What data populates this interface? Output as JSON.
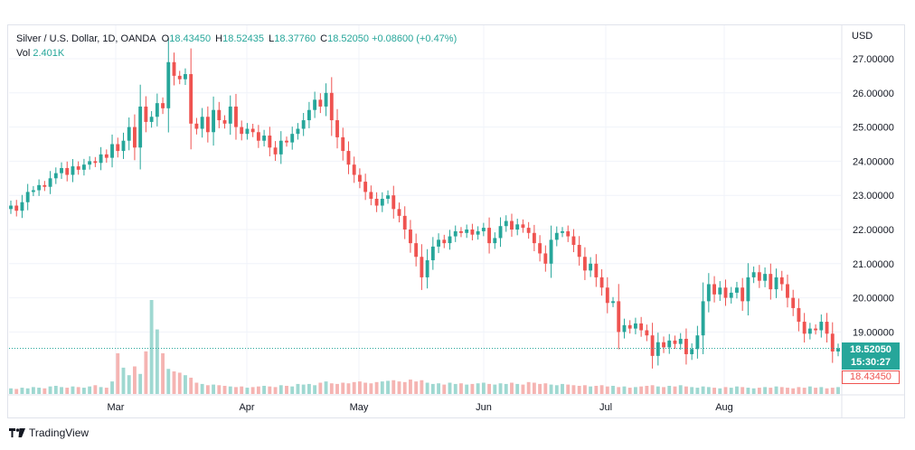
{
  "legend": {
    "symbol": "Silver / U.S. Dollar, 1D, OANDA",
    "open_label": "O",
    "open": "18.43450",
    "high_label": "H",
    "high": "18.52435",
    "low_label": "L",
    "low": "18.37760",
    "close_label": "C",
    "close": "18.52050",
    "change": "+0.08600 (+0.47%)",
    "vol_label": "Vol",
    "vol": "2.401K"
  },
  "currency": "USD",
  "price_badge": {
    "price": "18.52050",
    "countdown": "15:30:27"
  },
  "open_badge": "18.43450",
  "brand": "TradingView",
  "colors": {
    "up": "#26a69a",
    "down": "#ef5350",
    "up_vol": "#9fd8d1",
    "down_vol": "#f5b4b2",
    "grid": "#f0f3fa"
  },
  "chart_data": {
    "type": "candlestick",
    "ylim": [
      17.3,
      27.5
    ],
    "yticks": [
      "27.00000",
      "26.00000",
      "25.00000",
      "24.00000",
      "23.00000",
      "22.00000",
      "21.00000",
      "20.00000",
      "19.00000"
    ],
    "xticks": [
      "Mar",
      "Apr",
      "May",
      "Jun",
      "Jul",
      "Aug"
    ],
    "last_price": 18.5205,
    "close": [
      22.7,
      22.55,
      22.8,
      23.1,
      23.15,
      23.3,
      23.25,
      23.5,
      23.65,
      23.8,
      23.6,
      23.85,
      23.75,
      23.9,
      24.0,
      23.95,
      24.2,
      24.1,
      24.5,
      24.3,
      24.6,
      25.0,
      24.4,
      25.6,
      25.15,
      25.3,
      25.7,
      25.55,
      26.9,
      26.5,
      26.4,
      26.55,
      25.1,
      24.95,
      25.3,
      24.85,
      25.5,
      25.2,
      25.1,
      25.6,
      25.0,
      24.8,
      24.95,
      24.85,
      24.6,
      24.75,
      24.4,
      24.2,
      24.6,
      24.55,
      24.8,
      24.95,
      25.2,
      25.5,
      25.8,
      25.6,
      26.0,
      25.2,
      24.7,
      24.3,
      23.9,
      23.6,
      23.4,
      23.1,
      22.9,
      22.7,
      22.9,
      23.0,
      22.6,
      22.4,
      22.0,
      21.6,
      21.2,
      20.6,
      21.1,
      21.5,
      21.7,
      21.6,
      21.8,
      21.95,
      21.9,
      22.0,
      21.85,
      21.95,
      22.05,
      21.6,
      21.75,
      22.1,
      22.25,
      22.0,
      22.15,
      22.05,
      21.9,
      21.6,
      21.3,
      21.0,
      21.7,
      21.9,
      21.95,
      21.8,
      21.55,
      21.2,
      20.8,
      21.0,
      20.6,
      20.3,
      19.85,
      19.9,
      19.0,
      19.2,
      19.1,
      19.25,
      19.05,
      18.9,
      18.3,
      18.7,
      18.55,
      18.75,
      18.65,
      18.8,
      18.35,
      18.5,
      18.9,
      19.9,
      20.4,
      20.1,
      20.3,
      20.0,
      20.15,
      20.3,
      19.9,
      20.6,
      20.75,
      20.5,
      20.7,
      20.25,
      20.6,
      20.4,
      20.0,
      19.7,
      19.3,
      18.95,
      19.1,
      19.05,
      19.3,
      18.95,
      18.43,
      18.52
    ],
    "volume": [
      0.9,
      0.8,
      1.0,
      0.9,
      1.1,
      1.0,
      0.9,
      1.2,
      1.3,
      1.1,
      1.0,
      1.2,
      1.1,
      1.0,
      1.2,
      1.4,
      1.1,
      1.0,
      2.0,
      6.5,
      4.2,
      3.0,
      4.4,
      3.2,
      6.8,
      15.0,
      10.3,
      6.5,
      4.0,
      3.6,
      3.4,
      3.0,
      2.6,
      1.8,
      1.6,
      1.4,
      1.5,
      1.4,
      1.3,
      1.2,
      1.1,
      1.2,
      1.0,
      1.1,
      1.2,
      1.3,
      1.2,
      1.1,
      1.4,
      1.3,
      1.2,
      1.6,
      1.5,
      1.6,
      1.4,
      1.8,
      2.0,
      1.7,
      1.6,
      1.8,
      1.7,
      1.9,
      2.0,
      1.8,
      1.7,
      1.9,
      2.0,
      2.1,
      2.2,
      2.0,
      1.9,
      2.3,
      2.0,
      2.2,
      1.8,
      1.6,
      1.7,
      1.5,
      1.8,
      1.6,
      1.7,
      1.5,
      1.6,
      1.7,
      1.8,
      1.6,
      1.5,
      1.7,
      1.6,
      1.8,
      1.6,
      1.5,
      1.9,
      1.8,
      1.6,
      1.7,
      1.5,
      1.4,
      1.6,
      1.5,
      1.4,
      1.3,
      1.4,
      1.2,
      1.3,
      1.4,
      1.2,
      1.3,
      1.1,
      1.2,
      1.0,
      1.1,
      1.2,
      1.3,
      1.4,
      1.2,
      1.1,
      1.3,
      1.2,
      1.4,
      1.2,
      1.1,
      1.0,
      1.2,
      1.1,
      1.0,
      0.9,
      1.1,
      1.0,
      1.2,
      1.1,
      1.0,
      0.9,
      1.0,
      1.1,
      1.0,
      1.2,
      1.1,
      1.0,
      0.9,
      1.1,
      1.0,
      1.2,
      1.0,
      1.1,
      0.9,
      1.0,
      1.1
    ]
  }
}
